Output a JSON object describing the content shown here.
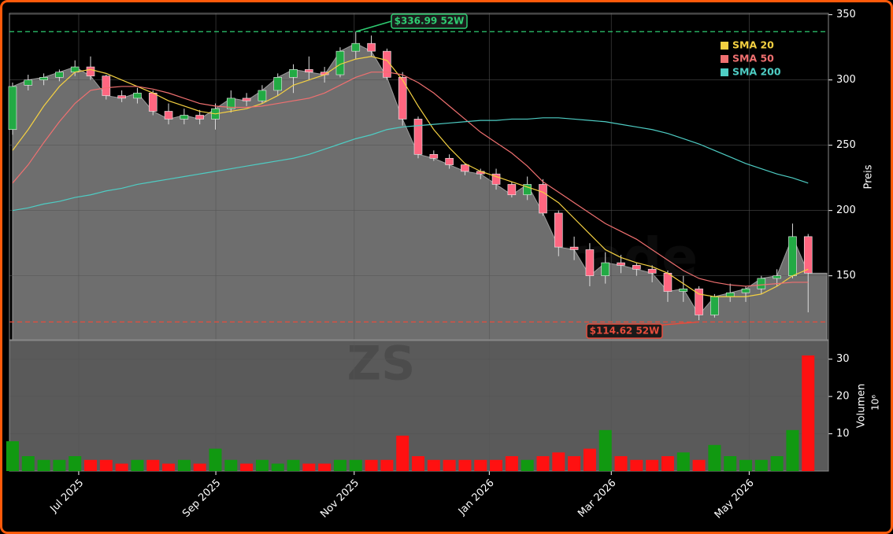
{
  "chart_data": [
    {
      "type": "candlestick",
      "ylabel": "Preis",
      "watermark": "forexsignale.trade",
      "xlim": [
        -0.2,
        52.3
      ],
      "ylim": [
        101,
        351
      ],
      "yticks": [
        150,
        200,
        250,
        300,
        350
      ],
      "grid": true,
      "legend": "upper right",
      "up_color": "#22aa44",
      "down_color": "#ff6680",
      "open": [
        262,
        296,
        300,
        302,
        306,
        310,
        303,
        288,
        286,
        290,
        276,
        270,
        273,
        270,
        278,
        286,
        284,
        292,
        302,
        308,
        306,
        304,
        322,
        328,
        322,
        302,
        270,
        243,
        240,
        235,
        230,
        228,
        220,
        212,
        220,
        198,
        172,
        170,
        150,
        160,
        158,
        155,
        152,
        138,
        140,
        120,
        134,
        137,
        140,
        148,
        150,
        180
      ],
      "high": [
        298,
        304,
        305,
        308,
        315,
        318,
        304,
        292,
        294,
        292,
        282,
        278,
        277,
        282,
        292,
        290,
        296,
        305,
        312,
        318,
        310,
        325,
        337,
        334,
        324,
        306,
        272,
        246,
        243,
        236,
        232,
        232,
        222,
        226,
        224,
        200,
        180,
        175,
        168,
        166,
        160,
        158,
        154,
        150,
        142,
        136,
        144,
        142,
        150,
        155,
        190,
        182
      ],
      "low": [
        258,
        292,
        296,
        299,
        303,
        300,
        285,
        283,
        282,
        273,
        266,
        266,
        266,
        262,
        275,
        280,
        282,
        288,
        290,
        300,
        298,
        302,
        316,
        318,
        300,
        265,
        240,
        238,
        232,
        227,
        224,
        216,
        210,
        208,
        196,
        165,
        162,
        142,
        144,
        152,
        150,
        145,
        130,
        130,
        116,
        118,
        130,
        130,
        136,
        142,
        148,
        122
      ],
      "close": [
        295,
        300,
        302,
        306,
        310,
        303,
        288,
        286,
        290,
        276,
        270,
        273,
        270,
        278,
        286,
        284,
        292,
        302,
        308,
        306,
        304,
        322,
        328,
        322,
        302,
        270,
        243,
        240,
        235,
        230,
        228,
        220,
        212,
        220,
        198,
        172,
        170,
        150,
        160,
        158,
        155,
        152,
        138,
        140,
        120,
        134,
        137,
        140,
        148,
        150,
        180,
        152
      ],
      "series": [
        {
          "name": "SMA 20",
          "color": "#f5d142",
          "values": [
            246,
            262,
            280,
            295,
            306,
            308,
            305,
            300,
            295,
            290,
            284,
            280,
            276,
            274,
            276,
            278,
            282,
            288,
            296,
            300,
            304,
            312,
            316,
            318,
            315,
            300,
            280,
            262,
            248,
            236,
            230,
            226,
            222,
            218,
            214,
            206,
            194,
            182,
            170,
            164,
            160,
            157,
            152,
            144,
            136,
            134,
            134,
            134,
            136,
            142,
            150,
            155
          ]
        },
        {
          "name": "SMA 50",
          "color": "#f07070",
          "values": [
            221,
            235,
            252,
            268,
            282,
            292,
            294,
            295,
            295,
            293,
            290,
            286,
            282,
            280,
            279,
            279,
            280,
            282,
            284,
            286,
            290,
            296,
            302,
            306,
            306,
            304,
            298,
            290,
            280,
            270,
            260,
            252,
            244,
            234,
            222,
            214,
            206,
            198,
            190,
            184,
            178,
            170,
            162,
            154,
            148,
            145,
            143,
            142,
            143,
            144,
            145,
            145
          ]
        },
        {
          "name": "SMA 200",
          "color": "#4ecdc4",
          "values": [
            200,
            202,
            205,
            207,
            210,
            212,
            215,
            217,
            220,
            222,
            224,
            226,
            228,
            230,
            232,
            234,
            236,
            238,
            240,
            243,
            247,
            251,
            255,
            258,
            262,
            264,
            265,
            266,
            267,
            268,
            269,
            269,
            270,
            270,
            271,
            271,
            270,
            269,
            268,
            266,
            264,
            262,
            259,
            255,
            251,
            246,
            241,
            236,
            232,
            228,
            225,
            221
          ]
        }
      ],
      "annotations": [
        {
          "text": "$336.99 52W",
          "value": 336.99,
          "color": "#2ecc71"
        },
        {
          "text": "$114.62 52W",
          "value": 114.62,
          "color": "#e74c3c"
        }
      ]
    },
    {
      "type": "bar",
      "ylabel": "Volumen",
      "yunit": "10⁶",
      "watermark": "ZS",
      "xlim": [
        -0.2,
        52.3
      ],
      "ylim": [
        0,
        35
      ],
      "yticks": [
        10,
        20,
        30
      ],
      "grid": true,
      "up_color": "#119911",
      "down_color": "#ff1111",
      "values": [
        8,
        4,
        3,
        3,
        4,
        3,
        3,
        2,
        3,
        3,
        2,
        3,
        2,
        6,
        3,
        2,
        3,
        2,
        3,
        2,
        2,
        3,
        3,
        3,
        3,
        9.5,
        4,
        3,
        3,
        3,
        3,
        3,
        4,
        3,
        4,
        5,
        4,
        6,
        11,
        4,
        3,
        3,
        4,
        5,
        3,
        7,
        4,
        3,
        3,
        4,
        11,
        31
      ],
      "xticks": [
        {
          "value": 4.24,
          "label": "Jul 2025"
        },
        {
          "value": 13.03,
          "label": "Sep 2025"
        },
        {
          "value": 21.9,
          "label": "Nov 2025"
        },
        {
          "value": 30.56,
          "label": "Jan 2026"
        },
        {
          "value": 38.38,
          "label": "Mar 2026"
        },
        {
          "value": 47.22,
          "label": "May 2026"
        }
      ]
    }
  ]
}
